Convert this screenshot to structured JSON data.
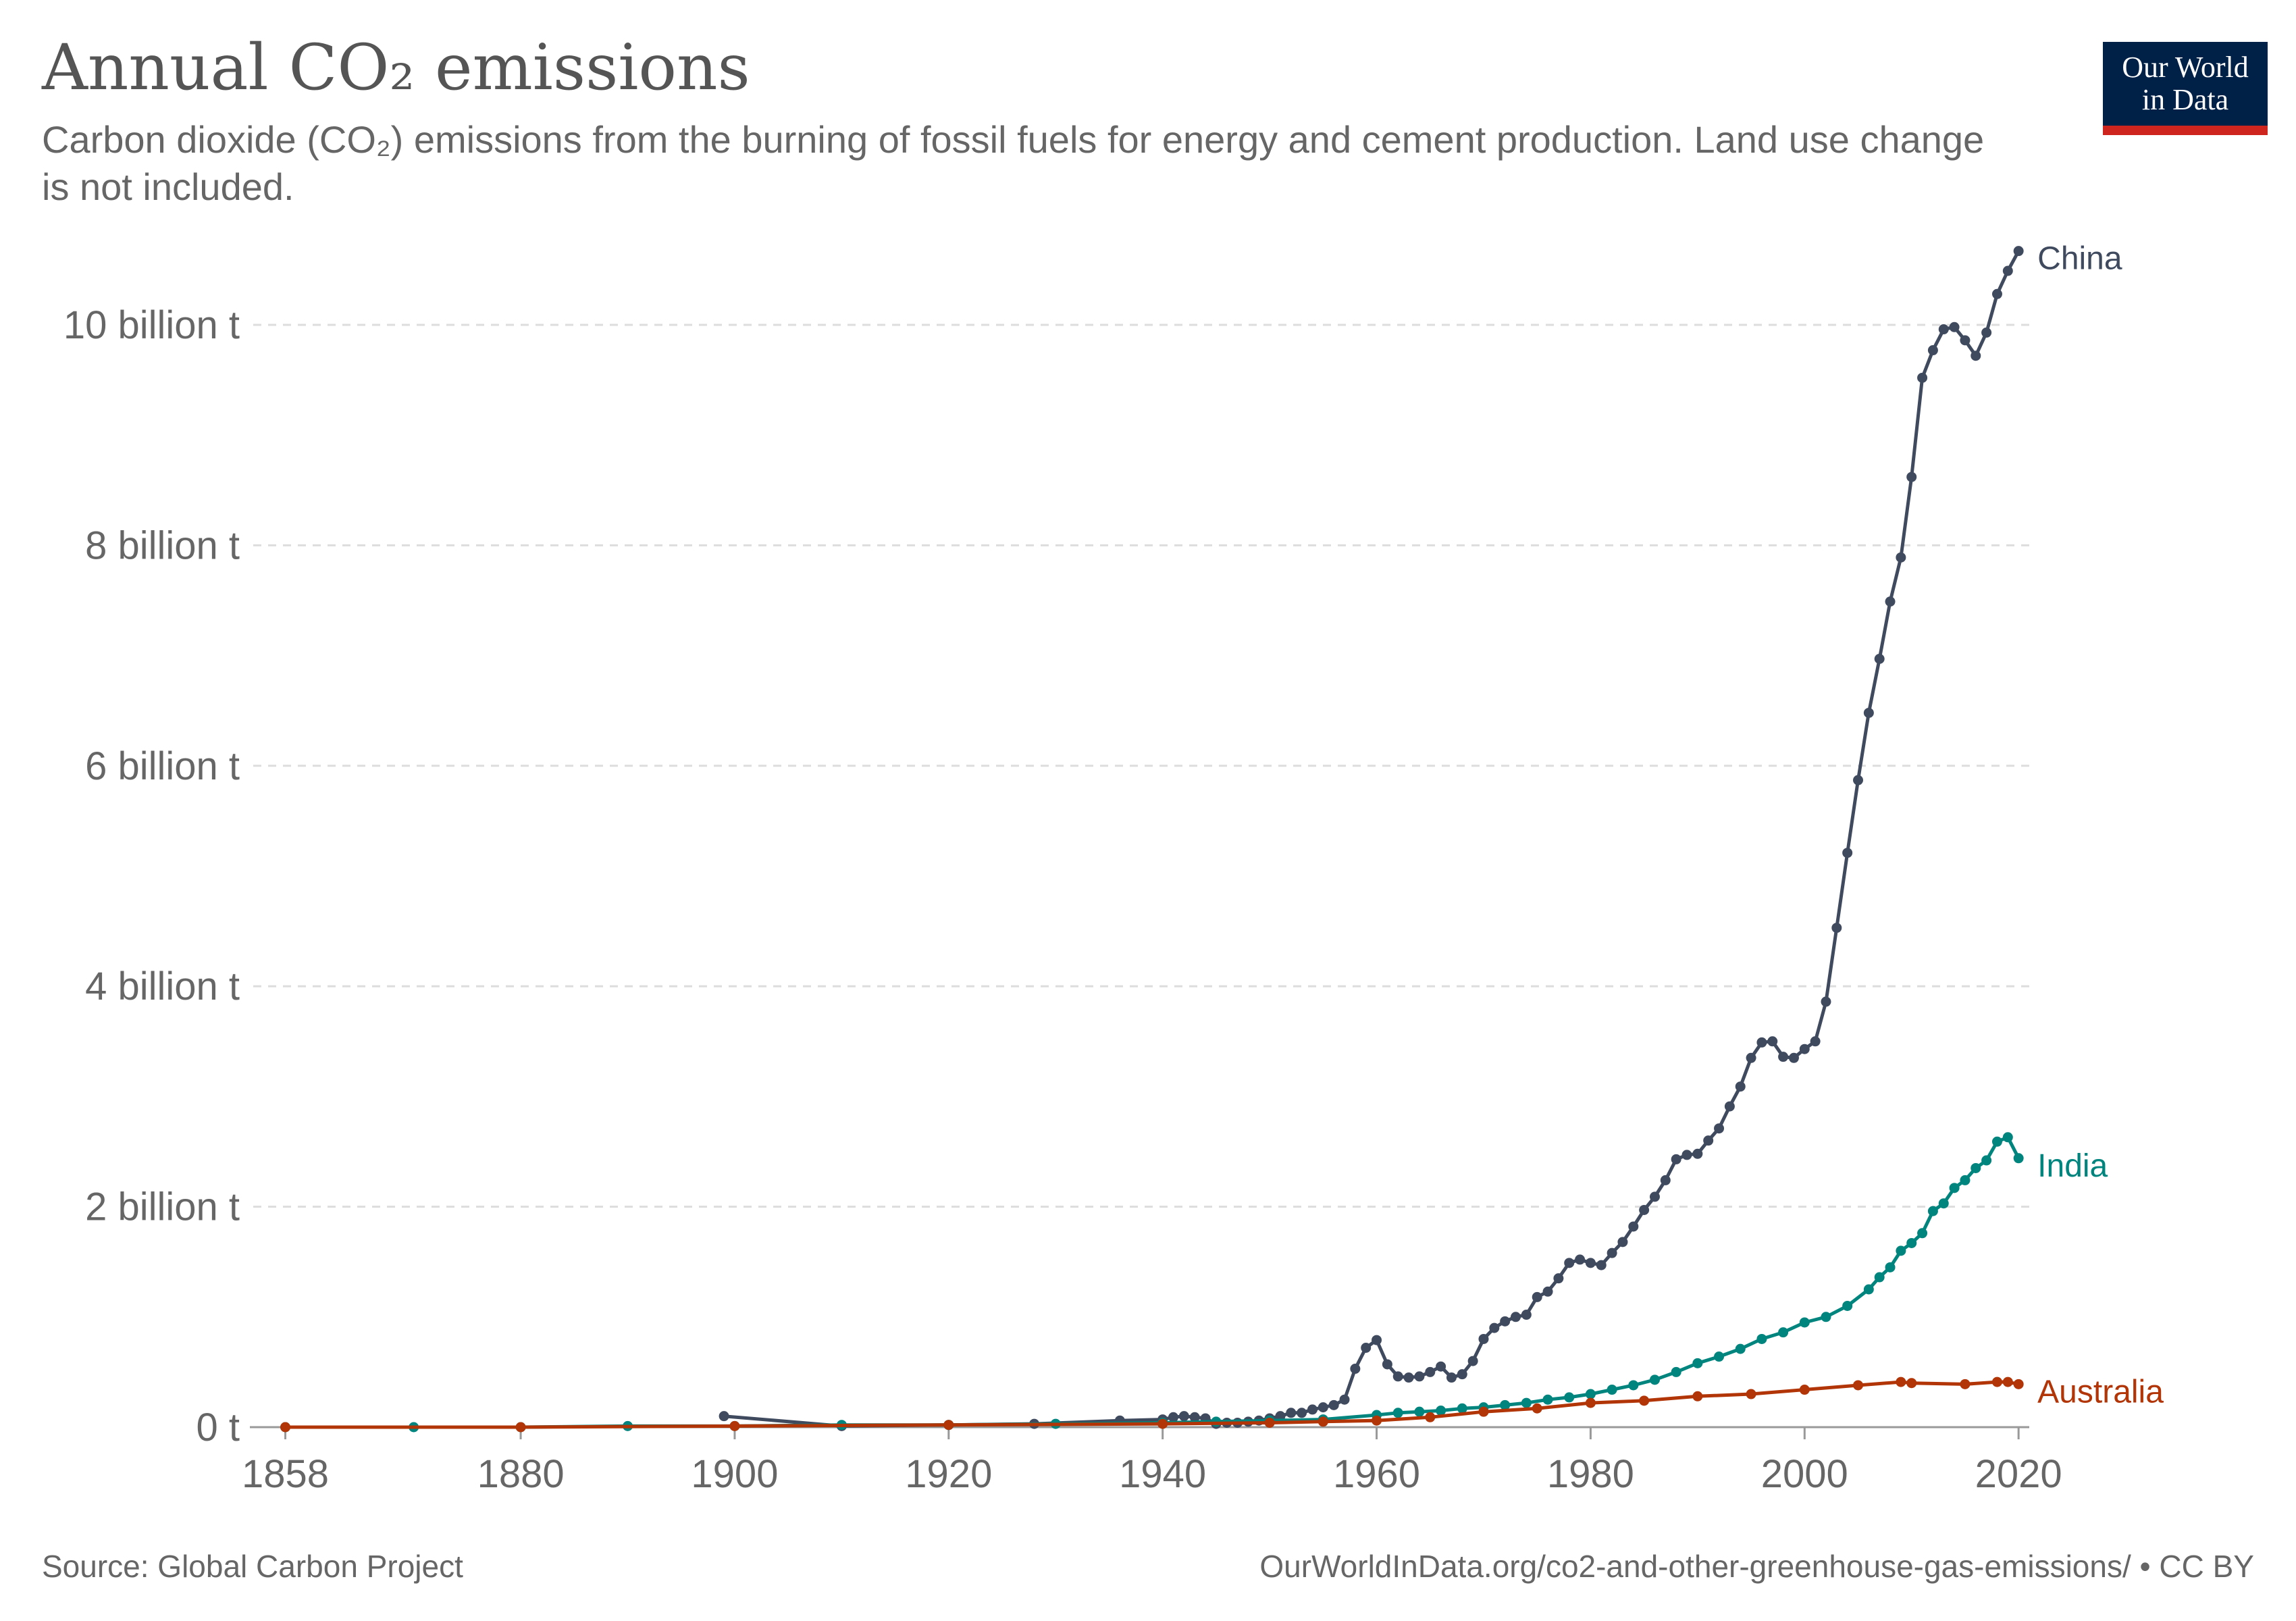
{
  "header": {
    "title": "Annual CO₂ emissions",
    "subtitle": "Carbon dioxide (CO₂) emissions from the burning of fossil fuels for energy and cement production. Land use change is not included."
  },
  "logo": {
    "line1": "Our World",
    "line2": "in Data",
    "bg_color": "#002147",
    "bar_color": "#ce261e"
  },
  "footer": {
    "source": "Source: Global Carbon Project",
    "url": "OurWorldInData.org/co2-and-other-greenhouse-gas-emissions/ • CC BY"
  },
  "chart_data": {
    "type": "line",
    "title": "Annual CO₂ emissions",
    "xlim": [
      1858,
      2022
    ],
    "ylim": [
      0,
      10000000000
    ],
    "x_ticks": [
      1858,
      1880,
      1900,
      1920,
      1940,
      1960,
      1980,
      2000,
      2020
    ],
    "y_ticks": [
      {
        "value": 0,
        "label": "0 t"
      },
      {
        "value": 2000000000,
        "label": "2 billion t"
      },
      {
        "value": 4000000000,
        "label": "4 billion t"
      },
      {
        "value": 6000000000,
        "label": "6 billion t"
      },
      {
        "value": 8000000000,
        "label": "8 billion t"
      },
      {
        "value": 10000000000,
        "label": "10 billion t"
      }
    ],
    "grid": "horizontal dashed",
    "legend": "labels at line ends (right)",
    "series": [
      {
        "name": "China",
        "color": "#3f4a5f",
        "points": [
          [
            1899,
            0.1
          ],
          [
            1910,
            0.01
          ],
          [
            1920,
            0.02
          ],
          [
            1928,
            0.03
          ],
          [
            1936,
            0.06
          ],
          [
            1940,
            0.07
          ],
          [
            1941,
            0.09
          ],
          [
            1942,
            0.1
          ],
          [
            1943,
            0.09
          ],
          [
            1944,
            0.08
          ],
          [
            1945,
            0.03
          ],
          [
            1946,
            0.04
          ],
          [
            1947,
            0.04
          ],
          [
            1948,
            0.05
          ],
          [
            1949,
            0.06
          ],
          [
            1950,
            0.08
          ],
          [
            1951,
            0.1
          ],
          [
            1952,
            0.13
          ],
          [
            1953,
            0.13
          ],
          [
            1954,
            0.16
          ],
          [
            1955,
            0.18
          ],
          [
            1956,
            0.2
          ],
          [
            1957,
            0.25
          ],
          [
            1958,
            0.53
          ],
          [
            1959,
            0.72
          ],
          [
            1960,
            0.79
          ],
          [
            1961,
            0.57
          ],
          [
            1962,
            0.46
          ],
          [
            1963,
            0.45
          ],
          [
            1964,
            0.46
          ],
          [
            1965,
            0.5
          ],
          [
            1966,
            0.55
          ],
          [
            1967,
            0.45
          ],
          [
            1968,
            0.48
          ],
          [
            1969,
            0.6
          ],
          [
            1970,
            0.8
          ],
          [
            1971,
            0.9
          ],
          [
            1972,
            0.96
          ],
          [
            1973,
            1.0
          ],
          [
            1974,
            1.02
          ],
          [
            1975,
            1.18
          ],
          [
            1976,
            1.23
          ],
          [
            1977,
            1.35
          ],
          [
            1978,
            1.49
          ],
          [
            1979,
            1.52
          ],
          [
            1980,
            1.49
          ],
          [
            1981,
            1.47
          ],
          [
            1982,
            1.58
          ],
          [
            1983,
            1.68
          ],
          [
            1984,
            1.82
          ],
          [
            1985,
            1.97
          ],
          [
            1986,
            2.09
          ],
          [
            1987,
            2.24
          ],
          [
            1988,
            2.43
          ],
          [
            1989,
            2.47
          ],
          [
            1990,
            2.48
          ],
          [
            1991,
            2.6
          ],
          [
            1992,
            2.71
          ],
          [
            1993,
            2.91
          ],
          [
            1994,
            3.09
          ],
          [
            1995,
            3.35
          ],
          [
            1996,
            3.49
          ],
          [
            1997,
            3.5
          ],
          [
            1998,
            3.36
          ],
          [
            1999,
            3.35
          ],
          [
            2000,
            3.43
          ],
          [
            2001,
            3.5
          ],
          [
            2002,
            3.86
          ],
          [
            2003,
            4.53
          ],
          [
            2004,
            5.21
          ],
          [
            2005,
            5.87
          ],
          [
            2006,
            6.48
          ],
          [
            2007,
            6.97
          ],
          [
            2008,
            7.49
          ],
          [
            2009,
            7.89
          ],
          [
            2010,
            8.62
          ],
          [
            2011,
            9.52
          ],
          [
            2012,
            9.77
          ],
          [
            2013,
            9.96
          ],
          [
            2014,
            9.98
          ],
          [
            2015,
            9.86
          ],
          [
            2016,
            9.72
          ],
          [
            2017,
            9.93
          ],
          [
            2018,
            10.28
          ],
          [
            2019,
            10.49
          ],
          [
            2020,
            10.67
          ]
        ]
      },
      {
        "name": "India",
        "color": "#00847e",
        "points": [
          [
            1858,
            0.0
          ],
          [
            1870,
            0.0
          ],
          [
            1880,
            0.0
          ],
          [
            1890,
            0.01
          ],
          [
            1900,
            0.01
          ],
          [
            1910,
            0.02
          ],
          [
            1920,
            0.02
          ],
          [
            1930,
            0.03
          ],
          [
            1940,
            0.04
          ],
          [
            1945,
            0.05
          ],
          [
            1950,
            0.06
          ],
          [
            1955,
            0.07
          ],
          [
            1960,
            0.11
          ],
          [
            1962,
            0.13
          ],
          [
            1964,
            0.14
          ],
          [
            1966,
            0.15
          ],
          [
            1968,
            0.17
          ],
          [
            1970,
            0.18
          ],
          [
            1972,
            0.2
          ],
          [
            1974,
            0.22
          ],
          [
            1976,
            0.25
          ],
          [
            1978,
            0.27
          ],
          [
            1980,
            0.3
          ],
          [
            1982,
            0.34
          ],
          [
            1984,
            0.38
          ],
          [
            1986,
            0.43
          ],
          [
            1988,
            0.5
          ],
          [
            1990,
            0.58
          ],
          [
            1992,
            0.64
          ],
          [
            1994,
            0.71
          ],
          [
            1996,
            0.8
          ],
          [
            1998,
            0.86
          ],
          [
            2000,
            0.95
          ],
          [
            2002,
            1.0
          ],
          [
            2004,
            1.1
          ],
          [
            2006,
            1.25
          ],
          [
            2007,
            1.36
          ],
          [
            2008,
            1.45
          ],
          [
            2009,
            1.6
          ],
          [
            2010,
            1.67
          ],
          [
            2011,
            1.76
          ],
          [
            2012,
            1.96
          ],
          [
            2013,
            2.03
          ],
          [
            2014,
            2.17
          ],
          [
            2015,
            2.24
          ],
          [
            2016,
            2.35
          ],
          [
            2017,
            2.42
          ],
          [
            2018,
            2.59
          ],
          [
            2019,
            2.63
          ],
          [
            2020,
            2.44
          ]
        ]
      },
      {
        "name": "Australia",
        "color": "#b13507",
        "points": [
          [
            1858,
            0.0
          ],
          [
            1880,
            0.0
          ],
          [
            1900,
            0.01
          ],
          [
            1920,
            0.02
          ],
          [
            1940,
            0.03
          ],
          [
            1950,
            0.04
          ],
          [
            1955,
            0.05
          ],
          [
            1960,
            0.06
          ],
          [
            1965,
            0.09
          ],
          [
            1970,
            0.14
          ],
          [
            1975,
            0.17
          ],
          [
            1980,
            0.22
          ],
          [
            1985,
            0.24
          ],
          [
            1990,
            0.28
          ],
          [
            1995,
            0.3
          ],
          [
            2000,
            0.34
          ],
          [
            2005,
            0.38
          ],
          [
            2009,
            0.41
          ],
          [
            2010,
            0.4
          ],
          [
            2015,
            0.39
          ],
          [
            2018,
            0.41
          ],
          [
            2019,
            0.41
          ],
          [
            2020,
            0.39
          ]
        ]
      }
    ]
  }
}
